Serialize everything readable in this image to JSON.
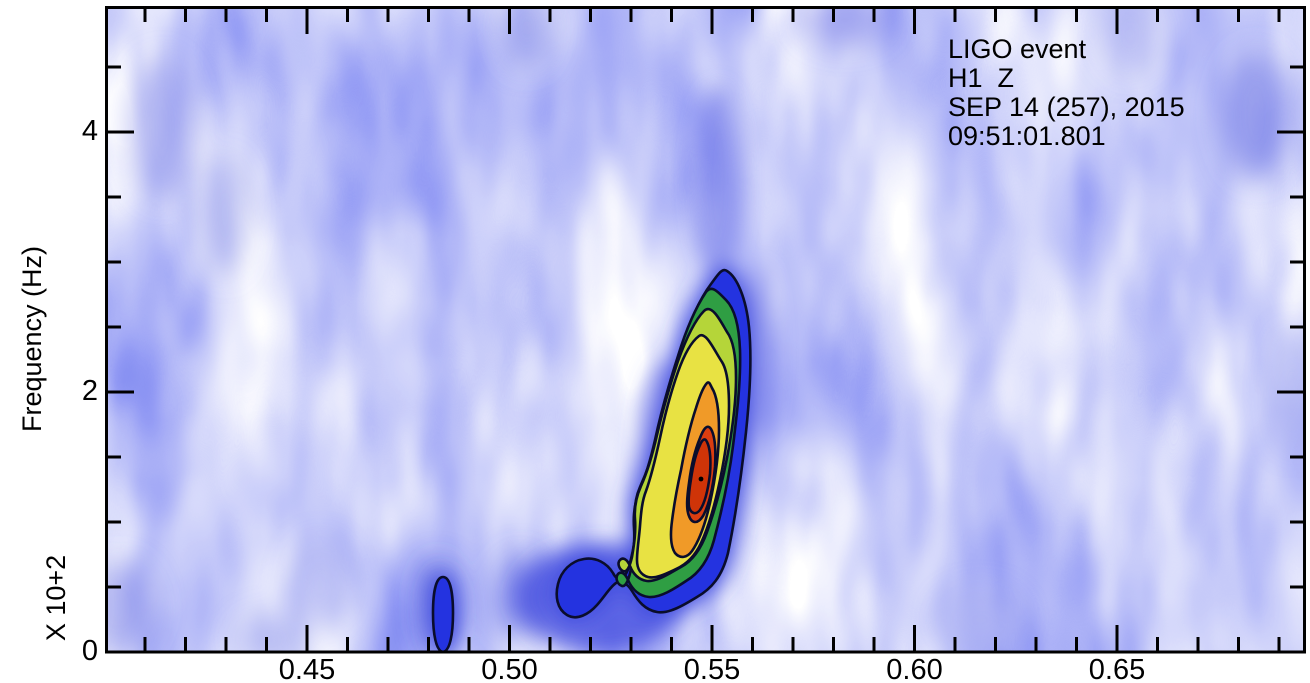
{
  "figure": {
    "kind": "spectrogram plot",
    "background_color": "#ffffff"
  },
  "annotation": {
    "lines": [
      "LIGO event",
      "H1  Z",
      "SEP 14 (257), 2015",
      "09:51:01.801"
    ]
  },
  "axes": {
    "y": {
      "label": "Frequency (Hz)",
      "multiplier": "X 10+2",
      "major_ticks": [
        4,
        2,
        0
      ],
      "tick_labels": [
        "4",
        "2",
        "0"
      ],
      "minor_ticks": [
        0.5,
        1.0,
        1.5,
        2.5,
        3.0,
        3.5,
        4.5
      ],
      "range": [
        0,
        4.97
      ]
    },
    "x": {
      "major_ticks": [
        0.45,
        0.5,
        0.55,
        0.6,
        0.65
      ],
      "tick_labels": [
        "0.45",
        "0.50",
        "0.55",
        "0.60",
        "0.65"
      ],
      "minor_ticks": [
        0.41,
        0.42,
        0.43,
        0.44,
        0.46,
        0.47,
        0.48,
        0.49,
        0.51,
        0.52,
        0.53,
        0.54,
        0.56,
        0.57,
        0.58,
        0.59,
        0.61,
        0.62,
        0.63,
        0.64,
        0.66,
        0.67,
        0.68,
        0.69
      ],
      "range": [
        0.4,
        0.696
      ]
    }
  },
  "colors": {
    "axis": "#000000",
    "text": "#000000",
    "contour_line": "#0a0d2c",
    "background_noise_light": "#dfe2fa",
    "background_noise_mid": "#8b91ec",
    "background_noise_deep": "#3d49dc",
    "peak_dot": "#000000"
  },
  "chart_data": {
    "type": "heatmap",
    "title": "LIGO event",
    "detector": "H1",
    "channel": "Z",
    "date": "SEP 14 (257), 2015",
    "time": "09:51:01.801",
    "xlabel": "",
    "ylabel": "Frequency (Hz)",
    "y_units": "X 10+2 Hz",
    "x_range": [
      0.4,
      0.696
    ],
    "y_range_1e2_hz": [
      0,
      4.97
    ],
    "x_major_ticks": [
      0.45,
      0.5,
      0.55,
      0.6,
      0.65
    ],
    "x_minor_step": 0.01,
    "y_major_ticks": [
      0,
      2,
      4
    ],
    "y_minor_step": 0.5,
    "legend_position": "none",
    "grid": false,
    "contour_level_count": 7,
    "contour_colors": [
      "#2433e0",
      "#2f9e43",
      "#b5d539",
      "#e8e243",
      "#f09a28",
      "#da3d10",
      "#cf3408"
    ],
    "chirp_track_t_vs_f1e2hz": [
      {
        "t": 0.519,
        "f": 0.48
      },
      {
        "t": 0.53,
        "f": 0.55
      },
      {
        "t": 0.536,
        "f": 0.75
      },
      {
        "t": 0.541,
        "f": 1.0
      },
      {
        "t": 0.545,
        "f": 1.2
      },
      {
        "t": 0.548,
        "f": 1.33
      },
      {
        "t": 0.55,
        "f": 1.7
      },
      {
        "t": 0.552,
        "f": 2.1
      },
      {
        "t": 0.554,
        "f": 2.5
      },
      {
        "t": 0.555,
        "f": 2.92
      }
    ],
    "peak": {
      "t": 0.548,
      "f_1e2_hz": 1.33
    },
    "isolated_low_blob": {
      "t": 0.484,
      "f_1e2_hz_range": [
        0,
        0.57
      ]
    },
    "background": "mottled blue-white noise, vertically streaked"
  }
}
